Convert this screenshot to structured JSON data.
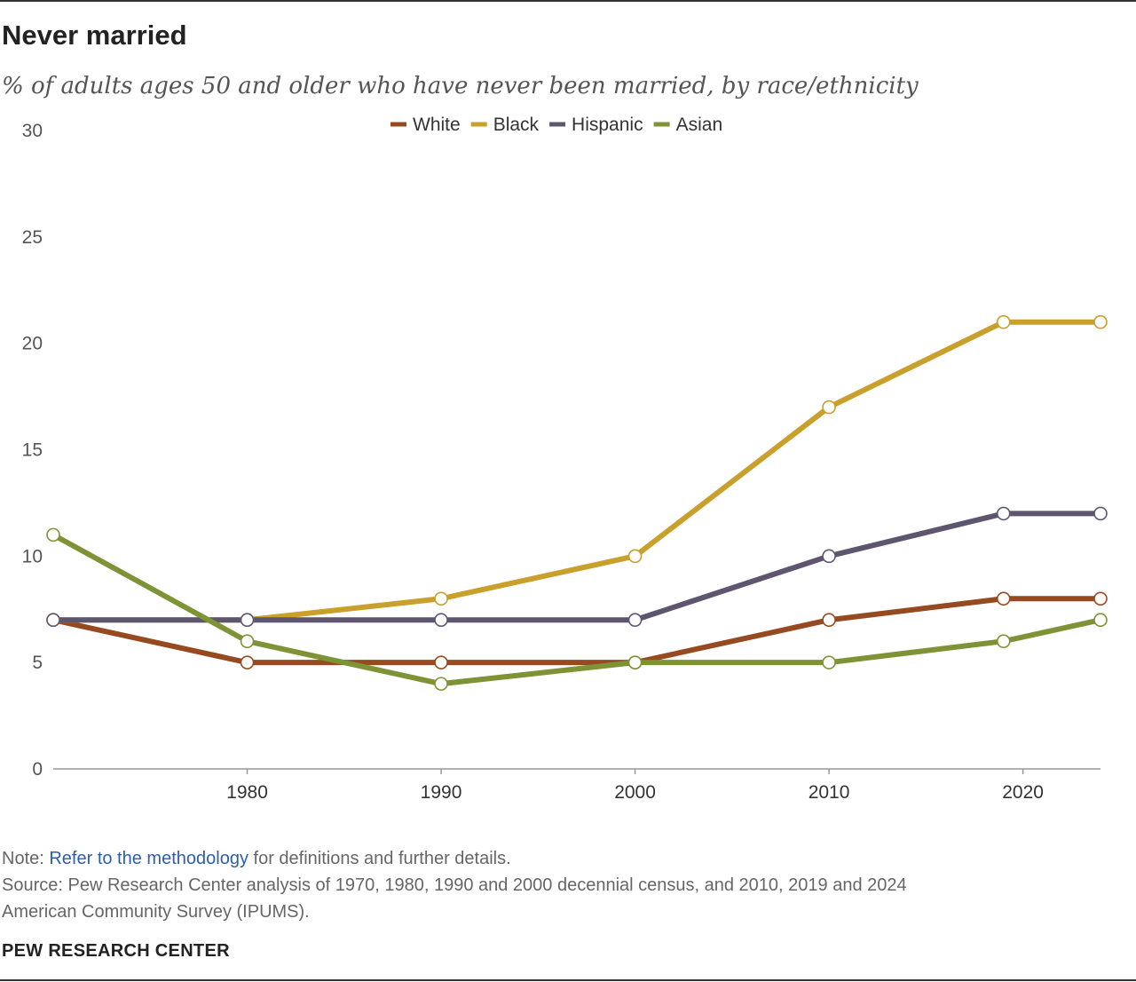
{
  "title": "Never married",
  "subtitle": "% of adults ages 50 and older who have never been married, by race/ethnicity",
  "note": {
    "prefix": "Note: ",
    "link_text": "Refer to the methodology",
    "suffix": " for definitions and further details."
  },
  "source": {
    "line1": "Source: Pew Research Center analysis of 1970, 1980, 1990 and 2000 decennial census, and 2010, 2019 and 2024",
    "line2": "American Community Survey (IPUMS)."
  },
  "brand": "PEW RESEARCH CENTER",
  "chart_data": {
    "type": "line",
    "title": "Never married",
    "xlabel": "",
    "ylabel": "",
    "x": [
      1970,
      1980,
      1990,
      2000,
      2010,
      2019,
      2024
    ],
    "x_ticks": [
      1980,
      1990,
      2000,
      2010,
      2020
    ],
    "xlim": [
      1970,
      2024
    ],
    "ylim": [
      0,
      30
    ],
    "y_ticks": [
      0,
      5,
      10,
      15,
      20,
      25,
      30
    ],
    "grid": false,
    "legend_position": "top-center",
    "series": [
      {
        "name": "White",
        "color": "#964a1f",
        "values": [
          7,
          5,
          5,
          5,
          7,
          8,
          8
        ]
      },
      {
        "name": "Black",
        "color": "#c9a02b",
        "values": [
          7,
          7,
          8,
          10,
          17,
          21,
          21
        ]
      },
      {
        "name": "Hispanic",
        "color": "#5e566e",
        "values": [
          7,
          7,
          7,
          7,
          10,
          12,
          12
        ]
      },
      {
        "name": "Asian",
        "color": "#7e9336",
        "values": [
          11,
          6,
          4,
          5,
          5,
          6,
          7
        ]
      }
    ]
  }
}
